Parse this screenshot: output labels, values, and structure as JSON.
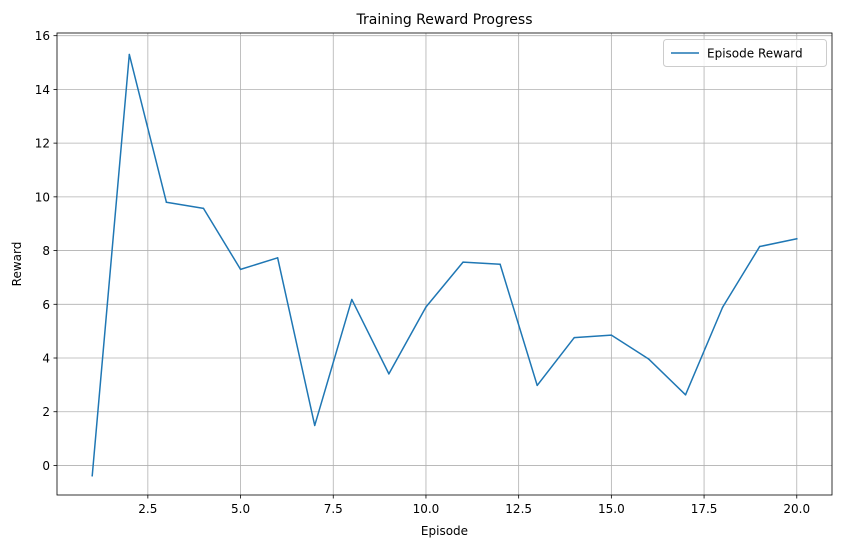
{
  "chart_data": {
    "type": "line",
    "title": "Training Reward Progress",
    "xlabel": "Episode",
    "ylabel": "Reward",
    "xlim": [
      0.05,
      20.95
    ],
    "ylim": [
      -1.1,
      16.1
    ],
    "xticks": [
      2.5,
      5.0,
      7.5,
      10.0,
      12.5,
      15.0,
      17.5,
      20.0
    ],
    "xtick_labels": [
      "2.5",
      "5.0",
      "7.5",
      "10.0",
      "12.5",
      "15.0",
      "17.5",
      "20.0"
    ],
    "yticks": [
      0,
      2,
      4,
      6,
      8,
      10,
      12,
      14,
      16
    ],
    "ytick_labels": [
      "0",
      "2",
      "4",
      "6",
      "8",
      "10",
      "12",
      "14",
      "16"
    ],
    "grid": true,
    "legend_position": "top-right",
    "series": [
      {
        "name": "Episode Reward",
        "color": "#1f77b4",
        "x": [
          1,
          2,
          3,
          4,
          5,
          6,
          7,
          8,
          9,
          10,
          11,
          12,
          13,
          14,
          15,
          16,
          17,
          18,
          19,
          20
        ],
        "y": [
          -0.38,
          15.3,
          9.8,
          9.57,
          7.3,
          7.73,
          1.49,
          6.18,
          3.41,
          5.9,
          7.57,
          7.49,
          2.98,
          4.76,
          4.85,
          3.97,
          2.63,
          5.89,
          8.15,
          8.44
        ]
      }
    ]
  }
}
